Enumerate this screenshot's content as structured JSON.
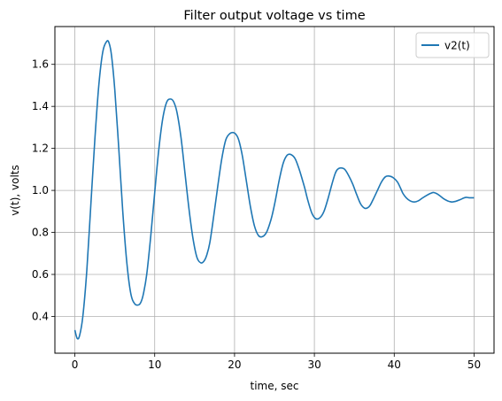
{
  "chart_data": {
    "type": "line",
    "title": "Filter output voltage vs time",
    "xlabel": "time, sec",
    "ylabel": "v(t), volts",
    "xlim": [
      -2.5,
      52.5
    ],
    "ylim": [
      0.225,
      1.78
    ],
    "xticks": [
      0,
      10,
      20,
      30,
      40,
      50
    ],
    "yticks": [
      0.4,
      0.6,
      0.8,
      1.0,
      1.2,
      1.4,
      1.6
    ],
    "xtick_labels": [
      "0",
      "10",
      "20",
      "30",
      "40",
      "50"
    ],
    "ytick_labels": [
      "0.4",
      "0.6",
      "0.8",
      "1.0",
      "1.2",
      "1.4",
      "1.6"
    ],
    "grid": true,
    "legend_position": "top-right",
    "series": [
      {
        "name": "v2(t)",
        "color": "#1f77b4",
        "x": [
          0,
          0.3,
          0.6,
          1.0,
          1.5,
          2.0,
          2.5,
          3.0,
          3.5,
          4.0,
          4.3,
          4.6,
          5.0,
          5.5,
          6.0,
          6.5,
          7.0,
          7.5,
          8.0,
          8.3,
          8.6,
          9.0,
          9.5,
          10.0,
          10.5,
          11.0,
          11.5,
          12.0,
          12.4,
          12.8,
          13.3,
          13.8,
          14.3,
          14.8,
          15.3,
          15.8,
          16.2,
          16.5,
          16.9,
          17.4,
          17.9,
          18.4,
          18.9,
          19.4,
          19.9,
          20.3,
          20.6,
          21.0,
          21.5,
          22.0,
          22.5,
          23.0,
          23.5,
          24.0,
          24.4,
          24.7,
          25.1,
          25.6,
          26.1,
          26.6,
          27.1,
          27.6,
          28.1,
          28.5,
          28.8,
          29.2,
          29.7,
          30.2,
          30.7,
          31.2,
          31.7,
          32.2,
          32.6,
          32.9,
          33.3,
          33.8,
          34.3,
          34.8,
          35.3,
          35.8,
          36.3,
          36.7,
          37.0,
          37.4,
          37.9,
          38.4,
          38.9,
          39.4,
          39.9,
          40.4,
          40.8,
          41.1,
          41.5,
          42.0,
          42.5,
          43.0,
          43.5,
          44.0,
          44.5,
          44.9,
          45.3,
          45.7,
          46.2,
          46.7,
          47.2,
          47.7,
          48.2,
          48.6,
          49.0,
          49.4,
          50.0
        ],
        "y": [
          0.335,
          0.295,
          0.31,
          0.4,
          0.62,
          0.93,
          1.24,
          1.5,
          1.66,
          1.71,
          1.7,
          1.64,
          1.48,
          1.2,
          0.9,
          0.66,
          0.51,
          0.46,
          0.455,
          0.47,
          0.51,
          0.6,
          0.78,
          0.99,
          1.19,
          1.34,
          1.42,
          1.435,
          1.42,
          1.37,
          1.25,
          1.08,
          0.91,
          0.77,
          0.68,
          0.655,
          0.665,
          0.69,
          0.75,
          0.88,
          1.02,
          1.15,
          1.24,
          1.27,
          1.275,
          1.26,
          1.23,
          1.16,
          1.04,
          0.92,
          0.83,
          0.785,
          0.78,
          0.8,
          0.84,
          0.88,
          0.95,
          1.05,
          1.13,
          1.168,
          1.17,
          1.15,
          1.1,
          1.05,
          1.01,
          0.95,
          0.89,
          0.865,
          0.87,
          0.9,
          0.96,
          1.03,
          1.08,
          1.1,
          1.107,
          1.1,
          1.07,
          1.03,
          0.98,
          0.935,
          0.915,
          0.918,
          0.93,
          0.96,
          1.0,
          1.04,
          1.065,
          1.068,
          1.06,
          1.04,
          1.01,
          0.985,
          0.965,
          0.95,
          0.945,
          0.95,
          0.963,
          0.975,
          0.985,
          0.99,
          0.985,
          0.975,
          0.96,
          0.95,
          0.945,
          0.948,
          0.955,
          0.962,
          0.967,
          0.965,
          0.965
        ]
      }
    ]
  }
}
